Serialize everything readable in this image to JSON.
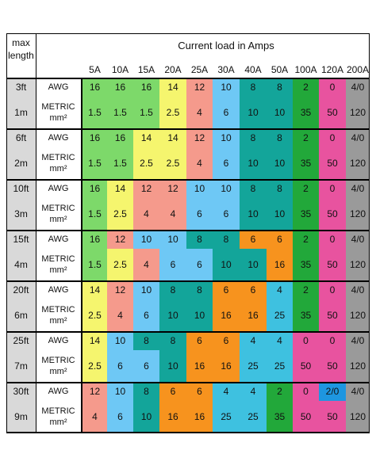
{
  "header": {
    "corner": [
      "max",
      "length"
    ],
    "title": "Current load in Amps",
    "columns": [
      "5A",
      "10A",
      "15A",
      "20A",
      "25A",
      "30A",
      "40A",
      "50A",
      "100A",
      "120A",
      "200A"
    ]
  },
  "groups": [
    {
      "imperial": "3ft",
      "metric": "1m",
      "awg_label": "AWG",
      "metric_label": "METRIC",
      "unit_label": "mm²",
      "awg": [
        "16",
        "16",
        "16",
        "14",
        "12",
        "10",
        "8",
        "8",
        "2",
        "0",
        "4/0"
      ],
      "awg_colors": [
        "#7dd96a",
        "#7dd96a",
        "#7dd96a",
        "#f5f56e",
        "#f59a8c",
        "#6ec8f5",
        "#13a59a",
        "#13a59a",
        "#22a83a",
        "#e8539f",
        "#9a9a9a"
      ],
      "mm2": [
        "1.5",
        "1.5",
        "1.5",
        "2.5",
        "4",
        "6",
        "10",
        "10",
        "35",
        "50",
        "120"
      ],
      "mm2_colors": [
        "#7dd96a",
        "#7dd96a",
        "#7dd96a",
        "#f5f56e",
        "#f59a8c",
        "#6ec8f5",
        "#13a59a",
        "#13a59a",
        "#22a83a",
        "#e8539f",
        "#9a9a9a"
      ]
    },
    {
      "imperial": "6ft",
      "metric": "2m",
      "awg_label": "AWG",
      "metric_label": "METRIC",
      "unit_label": "mm²",
      "awg": [
        "16",
        "16",
        "14",
        "14",
        "12",
        "10",
        "8",
        "8",
        "2",
        "0",
        "4/0"
      ],
      "awg_colors": [
        "#7dd96a",
        "#7dd96a",
        "#f5f56e",
        "#f5f56e",
        "#f59a8c",
        "#6ec8f5",
        "#13a59a",
        "#13a59a",
        "#22a83a",
        "#e8539f",
        "#9a9a9a"
      ],
      "mm2": [
        "1.5",
        "1.5",
        "2.5",
        "2.5",
        "4",
        "6",
        "10",
        "10",
        "35",
        "50",
        "120"
      ],
      "mm2_colors": [
        "#7dd96a",
        "#7dd96a",
        "#f5f56e",
        "#f5f56e",
        "#f59a8c",
        "#6ec8f5",
        "#13a59a",
        "#13a59a",
        "#22a83a",
        "#e8539f",
        "#9a9a9a"
      ]
    },
    {
      "imperial": "10ft",
      "metric": "3m",
      "awg_label": "AWG",
      "metric_label": "METRIC",
      "unit_label": "mm²",
      "awg": [
        "16",
        "14",
        "12",
        "12",
        "10",
        "10",
        "8",
        "8",
        "2",
        "0",
        "4/0"
      ],
      "awg_colors": [
        "#7dd96a",
        "#f5f56e",
        "#f59a8c",
        "#f59a8c",
        "#6ec8f5",
        "#6ec8f5",
        "#13a59a",
        "#13a59a",
        "#22a83a",
        "#e8539f",
        "#9a9a9a"
      ],
      "mm2": [
        "1.5",
        "2.5",
        "4",
        "4",
        "6",
        "6",
        "10",
        "10",
        "35",
        "50",
        "120"
      ],
      "mm2_colors": [
        "#7dd96a",
        "#f5f56e",
        "#f59a8c",
        "#f59a8c",
        "#6ec8f5",
        "#6ec8f5",
        "#13a59a",
        "#13a59a",
        "#22a83a",
        "#e8539f",
        "#9a9a9a"
      ]
    },
    {
      "imperial": "15ft",
      "metric": "4m",
      "awg_label": "AWG",
      "metric_label": "METRIC",
      "unit_label": "mm²",
      "awg": [
        "16",
        "12",
        "10",
        "10",
        "8",
        "8",
        "6",
        "6",
        "2",
        "0",
        "4/0"
      ],
      "awg_colors": [
        "#7dd96a",
        "#f59a8c",
        "#6ec8f5",
        "#6ec8f5",
        "#13a59a",
        "#13a59a",
        "#f7931e",
        "#f7931e",
        "#22a83a",
        "#e8539f",
        "#9a9a9a"
      ],
      "mm2": [
        "1.5",
        "2.5",
        "4",
        "6",
        "6",
        "10",
        "10",
        "16",
        "35",
        "50",
        "120"
      ],
      "mm2_colors": [
        "#7dd96a",
        "#f5f56e",
        "#f59a8c",
        "#6ec8f5",
        "#6ec8f5",
        "#13a59a",
        "#13a59a",
        "#f7931e",
        "#22a83a",
        "#e8539f",
        "#9a9a9a"
      ]
    },
    {
      "imperial": "20ft",
      "metric": "6m",
      "awg_label": "AWG",
      "metric_label": "METRIC",
      "unit_label": "mm²",
      "awg": [
        "14",
        "12",
        "10",
        "8",
        "8",
        "6",
        "6",
        "4",
        "2",
        "0",
        "4/0"
      ],
      "awg_colors": [
        "#f5f56e",
        "#f59a8c",
        "#6ec8f5",
        "#13a59a",
        "#13a59a",
        "#f7931e",
        "#f7931e",
        "#3ec1e0",
        "#22a83a",
        "#e8539f",
        "#9a9a9a"
      ],
      "mm2": [
        "2.5",
        "4",
        "6",
        "10",
        "10",
        "16",
        "16",
        "25",
        "35",
        "50",
        "120"
      ],
      "mm2_colors": [
        "#f5f56e",
        "#f59a8c",
        "#6ec8f5",
        "#13a59a",
        "#13a59a",
        "#f7931e",
        "#f7931e",
        "#3ec1e0",
        "#22a83a",
        "#e8539f",
        "#9a9a9a"
      ]
    },
    {
      "imperial": "25ft",
      "metric": "7m",
      "awg_label": "AWG",
      "metric_label": "METRIC",
      "unit_label": "mm²",
      "awg": [
        "14",
        "10",
        "8",
        "8",
        "6",
        "6",
        "4",
        "4",
        "0",
        "0",
        "4/0"
      ],
      "awg_colors": [
        "#f5f56e",
        "#6ec8f5",
        "#13a59a",
        "#13a59a",
        "#f7931e",
        "#f7931e",
        "#3ec1e0",
        "#3ec1e0",
        "#e8539f",
        "#e8539f",
        "#9a9a9a"
      ],
      "mm2": [
        "2.5",
        "6",
        "6",
        "10",
        "16",
        "16",
        "25",
        "25",
        "50",
        "50",
        "120"
      ],
      "mm2_colors": [
        "#f5f56e",
        "#6ec8f5",
        "#6ec8f5",
        "#13a59a",
        "#f7931e",
        "#f7931e",
        "#3ec1e0",
        "#3ec1e0",
        "#e8539f",
        "#e8539f",
        "#9a9a9a"
      ]
    },
    {
      "imperial": "30ft",
      "metric": "9m",
      "awg_label": "AWG",
      "metric_label": "METRIC",
      "unit_label": "mm²",
      "awg": [
        "12",
        "10",
        "8",
        "6",
        "6",
        "4",
        "4",
        "2",
        "0",
        "2/0",
        "4/0"
      ],
      "awg_colors": [
        "#f59a8c",
        "#6ec8f5",
        "#13a59a",
        "#f7931e",
        "#f7931e",
        "#3ec1e0",
        "#3ec1e0",
        "#22a83a",
        "#e8539f",
        "#1e96e0",
        "#9a9a9a"
      ],
      "mm2": [
        "4",
        "6",
        "10",
        "16",
        "16",
        "25",
        "25",
        "35",
        "50",
        "50",
        "120"
      ],
      "mm2_colors": [
        "#f59a8c",
        "#6ec8f5",
        "#13a59a",
        "#f7931e",
        "#f7931e",
        "#3ec1e0",
        "#3ec1e0",
        "#22a83a",
        "#e8539f",
        "#e8539f",
        "#9a9a9a"
      ]
    }
  ]
}
